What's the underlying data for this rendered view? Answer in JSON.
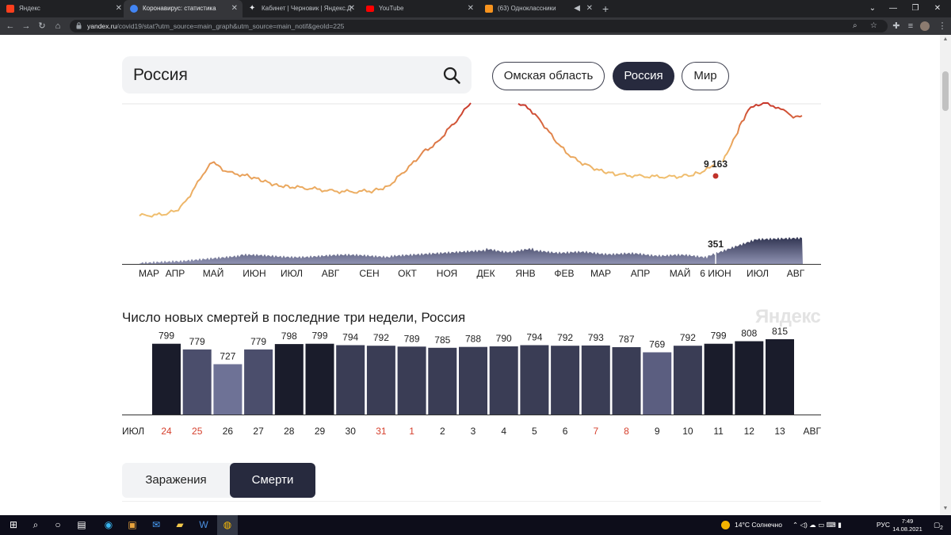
{
  "browser": {
    "tabs": [
      {
        "title": "Яндекс",
        "color": "#fc3f1d",
        "active": false
      },
      {
        "title": "Коронавирус: статистика",
        "color": "#4285f4",
        "active": true
      },
      {
        "title": "Кабинет | Черновик | Яндекс.Д",
        "color": "#e8eaed",
        "active": false
      },
      {
        "title": "YouTube",
        "color": "#ff0000",
        "active": false
      },
      {
        "title": "(63) Одноклассники",
        "color": "#f7931e",
        "active": false
      }
    ],
    "url_domain": "yandex.ru",
    "url_path": "/covid19/stat?utm_source=main_graph&utm_source=main_notif&geoId=225"
  },
  "search": {
    "query": "Россия"
  },
  "regions": [
    {
      "label": "Омская область",
      "active": false
    },
    {
      "label": "Россия",
      "active": true
    },
    {
      "label": "Мир",
      "active": false
    }
  ],
  "trend_chart": {
    "type": "line",
    "months": [
      "МАР",
      "АПР",
      "МАЙ",
      "ИЮН",
      "ИЮЛ",
      "АВГ",
      "СЕН",
      "ОКТ",
      "НОЯ",
      "ДЕК",
      "ЯНВ",
      "ФЕВ",
      "МАР",
      "АПР",
      "МАЙ",
      "6 ИЮН",
      "ИЮЛ",
      "АВГ"
    ],
    "cases_label": "9 163",
    "deaths_label": "351"
  },
  "chart_data": {
    "type": "bar",
    "title": "Число новых смертей в последние три недели, Россия",
    "categories": [
      "24",
      "25",
      "26",
      "27",
      "28",
      "29",
      "30",
      "31",
      "1",
      "2",
      "3",
      "4",
      "5",
      "6",
      "7",
      "8",
      "9",
      "10",
      "11",
      "12",
      "13"
    ],
    "values": [
      799,
      779,
      727,
      779,
      798,
      799,
      794,
      792,
      789,
      785,
      788,
      790,
      794,
      792,
      793,
      787,
      769,
      792,
      799,
      808,
      815
    ],
    "weekend": [
      true,
      true,
      false,
      false,
      false,
      false,
      false,
      true,
      true,
      false,
      false,
      false,
      false,
      false,
      true,
      true,
      false,
      false,
      false,
      false,
      false
    ],
    "bar_colors": [
      "#1a1c2b",
      "#4b4e6c",
      "#6e7296",
      "#4b4e6c",
      "#1a1c2b",
      "#1a1c2b",
      "#3a3d55",
      "#3a3d55",
      "#3a3d55",
      "#3a3d55",
      "#3a3d55",
      "#3a3d55",
      "#3a3d55",
      "#3a3d55",
      "#3a3d55",
      "#3a3d55",
      "#5b5e80",
      "#3a3d55",
      "#1a1c2b",
      "#1a1c2b",
      "#1a1c2b"
    ],
    "left_label": "ИЮЛ",
    "right_label": "АВГ",
    "ylim": [
      0,
      815
    ]
  },
  "brand": "Яндекс",
  "metric_switch": [
    {
      "label": "Заражения",
      "active": false
    },
    {
      "label": "Смерти",
      "active": true
    }
  ],
  "taskbar": {
    "weather": "14°C  Солнечно",
    "lang": "РУС",
    "time": "7:49",
    "date": "14.08.2021",
    "notifications": "2"
  }
}
